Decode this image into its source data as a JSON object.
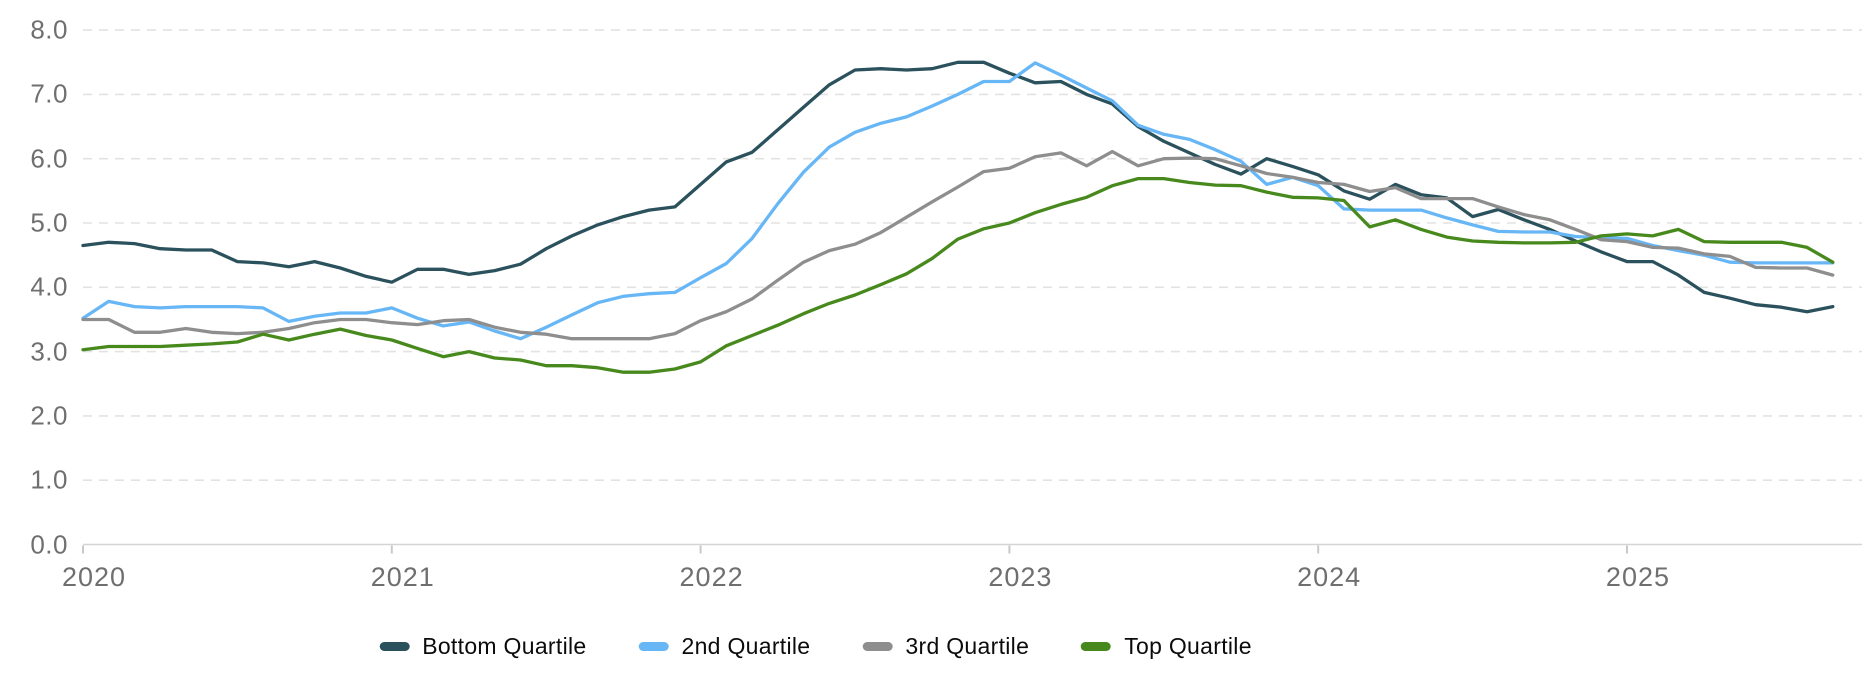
{
  "chart_data": {
    "type": "line",
    "title": "",
    "x_start": "2020-01",
    "x_end": "2025-09",
    "x_frequency": "monthly",
    "ylim": [
      0.0,
      8.0
    ],
    "y_tick_step": 1.0,
    "grid": "horizontal-dashed",
    "legend_position": "bottom-center",
    "series": [
      {
        "name": "Bottom Quartile",
        "color": "#2a515c",
        "values": [
          4.65,
          4.7,
          4.68,
          4.6,
          4.58,
          4.58,
          4.4,
          4.38,
          4.32,
          4.4,
          4.3,
          4.17,
          4.08,
          4.28,
          4.28,
          4.2,
          4.26,
          4.36,
          4.6,
          4.8,
          4.97,
          5.1,
          5.2,
          5.25,
          5.6,
          5.95,
          6.1,
          6.45,
          6.8,
          7.15,
          7.38,
          7.4,
          7.38,
          7.4,
          7.5,
          7.5,
          7.33,
          7.18,
          7.2,
          7.0,
          6.85,
          6.5,
          6.27,
          6.09,
          5.91,
          5.76,
          6.0,
          5.88,
          5.75,
          5.5,
          5.37,
          5.6,
          5.44,
          5.39,
          5.1,
          5.21,
          5.05,
          4.9,
          4.72,
          4.55,
          4.4,
          4.4,
          4.19,
          3.92,
          3.83,
          3.73,
          3.69,
          3.62,
          3.7
        ]
      },
      {
        "name": "2nd Quartile",
        "color": "#67b6f6",
        "values": [
          3.52,
          3.78,
          3.7,
          3.68,
          3.7,
          3.7,
          3.7,
          3.68,
          3.47,
          3.55,
          3.6,
          3.6,
          3.68,
          3.52,
          3.4,
          3.46,
          3.32,
          3.2,
          3.38,
          3.57,
          3.76,
          3.86,
          3.9,
          3.92,
          4.15,
          4.37,
          4.76,
          5.3,
          5.79,
          6.18,
          6.41,
          6.55,
          6.65,
          6.82,
          7.0,
          7.2,
          7.2,
          7.49,
          7.3,
          7.1,
          6.9,
          6.52,
          6.38,
          6.3,
          6.14,
          5.96,
          5.6,
          5.71,
          5.58,
          5.22,
          5.2,
          5.2,
          5.2,
          5.08,
          4.97,
          4.87,
          4.86,
          4.86,
          4.79,
          4.77,
          4.76,
          4.65,
          4.57,
          4.5,
          4.39,
          4.38,
          4.38,
          4.38,
          4.38
        ]
      },
      {
        "name": "3rd Quartile",
        "color": "#8e8e8e",
        "values": [
          3.5,
          3.5,
          3.3,
          3.3,
          3.36,
          3.3,
          3.28,
          3.3,
          3.36,
          3.45,
          3.5,
          3.5,
          3.45,
          3.42,
          3.48,
          3.5,
          3.38,
          3.3,
          3.27,
          3.2,
          3.2,
          3.2,
          3.2,
          3.28,
          3.48,
          3.62,
          3.82,
          4.11,
          4.39,
          4.57,
          4.67,
          4.85,
          5.09,
          5.33,
          5.56,
          5.8,
          5.85,
          6.03,
          6.09,
          5.89,
          6.11,
          5.89,
          6.0,
          6.01,
          6.0,
          5.89,
          5.77,
          5.71,
          5.63,
          5.6,
          5.49,
          5.55,
          5.38,
          5.38,
          5.38,
          5.25,
          5.13,
          5.05,
          4.9,
          4.74,
          4.71,
          4.62,
          4.61,
          4.52,
          4.48,
          4.31,
          4.3,
          4.3,
          4.19
        ]
      },
      {
        "name": "Top Quartile",
        "color": "#47891c",
        "values": [
          3.03,
          3.08,
          3.08,
          3.08,
          3.1,
          3.12,
          3.15,
          3.27,
          3.18,
          3.27,
          3.35,
          3.25,
          3.18,
          3.05,
          2.92,
          3.0,
          2.9,
          2.87,
          2.78,
          2.78,
          2.75,
          2.68,
          2.68,
          2.73,
          2.84,
          3.09,
          3.25,
          3.41,
          3.59,
          3.75,
          3.88,
          4.04,
          4.21,
          4.45,
          4.75,
          4.91,
          5.0,
          5.16,
          5.29,
          5.4,
          5.58,
          5.69,
          5.69,
          5.63,
          5.59,
          5.58,
          5.48,
          5.4,
          5.39,
          5.35,
          4.94,
          5.05,
          4.9,
          4.78,
          4.72,
          4.7,
          4.69,
          4.69,
          4.7,
          4.8,
          4.83,
          4.8,
          4.9,
          4.71,
          4.7,
          4.7,
          4.7,
          4.62,
          4.39
        ]
      }
    ]
  },
  "axes": {
    "x_labels": [
      "2020",
      "2021",
      "2022",
      "2023",
      "2024",
      "2025"
    ],
    "y_labels": [
      "0.0",
      "1.0",
      "2.0",
      "3.0",
      "4.0",
      "5.0",
      "6.0",
      "7.0",
      "8.0"
    ]
  },
  "colors": {
    "grid_line": "#e2e2e2",
    "axis_line": "#d4d4d4",
    "tick_mark": "#c9c9c9",
    "axis_text": "#6f6f6f",
    "legend_text": "#0b0b0b"
  }
}
